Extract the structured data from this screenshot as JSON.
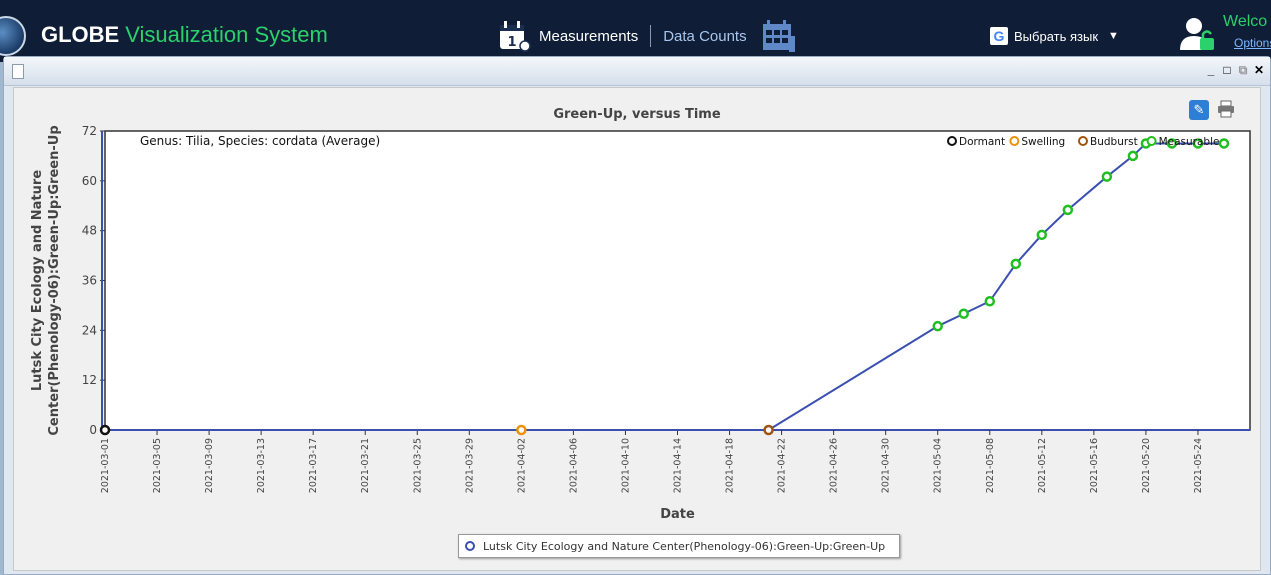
{
  "header": {
    "brand_primary": "GLOBE",
    "brand_secondary": "Visualization System",
    "nav_measurements": "Measurements",
    "nav_data_counts": "Data Counts",
    "language_label": "Выбрать язык",
    "welcome_text": "Welco",
    "options_link": "Options",
    "accent_color": "#2bd16a",
    "background_color": "#0f1d36"
  },
  "window": {
    "controls": [
      "_",
      "□",
      "⧉",
      "✕"
    ]
  },
  "chart_data": {
    "type": "line",
    "title": "Green-Up, versus Time",
    "subtitle": "Genus: Tilia, Species: cordata (Average)",
    "xlabel": "Date",
    "ylabel_line1": "Lutsk City Ecology and Nature",
    "ylabel_line2": "Center(Phenology-06):Green-Up:Green-Up",
    "ylim": [
      0,
      72
    ],
    "yticks": [
      0,
      12,
      24,
      36,
      48,
      60,
      72
    ],
    "x_range": [
      "2021-03-01",
      "2021-05-28"
    ],
    "x_tick_labels": [
      "2021-03-01",
      "2021-03-05",
      "2021-03-09",
      "2021-03-13",
      "2021-03-17",
      "2021-03-21",
      "2021-03-25",
      "2021-03-29",
      "2021-04-02",
      "2021-04-06",
      "2021-04-10",
      "2021-04-14",
      "2021-04-18",
      "2021-04-22",
      "2021-04-26",
      "2021-04-30",
      "2021-05-04",
      "2021-05-08",
      "2021-05-12",
      "2021-05-16",
      "2021-05-20",
      "2021-05-24"
    ],
    "grid": "horizontal dashed",
    "status_legend": [
      {
        "label": "Dormant",
        "color": "#111111"
      },
      {
        "label": "Swelling",
        "color": "#f0900a"
      },
      {
        "label": "Budburst",
        "color": "#a0520f"
      },
      {
        "label": "Measurable",
        "color": "#1fbf1f"
      }
    ],
    "series": [
      {
        "name": "Lutsk City Ecology and Nature Center(Phenology-06):Green-Up:Green-Up",
        "color": "#3a4fb0",
        "points": [
          {
            "x": "2021-03-01",
            "y": 0,
            "status": "Dormant"
          },
          {
            "x": "2021-04-02",
            "y": 0,
            "status": "Swelling"
          },
          {
            "x": "2021-04-21",
            "y": 0,
            "status": "Budburst"
          },
          {
            "x": "2021-05-04",
            "y": 25,
            "status": "Measurable"
          },
          {
            "x": "2021-05-06",
            "y": 28,
            "status": "Measurable"
          },
          {
            "x": "2021-05-08",
            "y": 31,
            "status": "Measurable"
          },
          {
            "x": "2021-05-10",
            "y": 40,
            "status": "Measurable"
          },
          {
            "x": "2021-05-12",
            "y": 47,
            "status": "Measurable"
          },
          {
            "x": "2021-05-14",
            "y": 53,
            "status": "Measurable"
          },
          {
            "x": "2021-05-17",
            "y": 61,
            "status": "Measurable"
          },
          {
            "x": "2021-05-19",
            "y": 66,
            "status": "Measurable"
          },
          {
            "x": "2021-05-20",
            "y": 69,
            "status": "Measurable"
          },
          {
            "x": "2021-05-22",
            "y": 69,
            "status": "Measurable"
          },
          {
            "x": "2021-05-24",
            "y": 69,
            "status": "Measurable"
          },
          {
            "x": "2021-05-26",
            "y": 69,
            "status": "Measurable"
          }
        ]
      }
    ]
  }
}
